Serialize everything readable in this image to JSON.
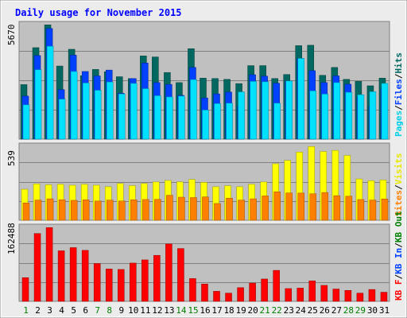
{
  "colors": {
    "frame": "#ececec",
    "panel": "#c0c0c0",
    "grid": "#808080",
    "title": "#0000ff",
    "hits": "#006860",
    "files": "#0040ff",
    "pages": "#00e0ff",
    "visits": "#ffff00",
    "sites": "#ff8000",
    "kbin": "#008000",
    "kbout": "#0000ff",
    "kbf": "#ff0000",
    "day_weekday": "#000000",
    "day_weekend": "#008000"
  },
  "chart_data": [
    {
      "type": "bar",
      "title": "Daily usage for November 2015",
      "panel": "top",
      "scale_label": "5670",
      "ymax": 5670,
      "side_labels": [
        "Pages",
        "/",
        "Files",
        "/",
        "Hits"
      ],
      "categories": [
        "1",
        "2",
        "3",
        "4",
        "5",
        "6",
        "7",
        "8",
        "9",
        "10",
        "11",
        "12",
        "13",
        "14",
        "15",
        "16",
        "17",
        "18",
        "19",
        "20",
        "21",
        "22",
        "23",
        "24",
        "25",
        "26",
        "27",
        "28",
        "29",
        "30",
        "31"
      ],
      "series": [
        {
          "name": "Hits",
          "values": [
            2700,
            4530,
            5660,
            3620,
            4450,
            3140,
            3450,
            3340,
            3090,
            3000,
            4120,
            4070,
            3300,
            2800,
            4480,
            3020,
            3000,
            2960,
            2750,
            3640,
            3640,
            3000,
            3200,
            4630,
            4650,
            3160,
            3550,
            2960,
            2860,
            2640,
            3020
          ]
        },
        {
          "name": "Files",
          "values": [
            2130,
            4140,
            5480,
            2450,
            4160,
            3350,
            3130,
            3420,
            2270,
            3000,
            3770,
            2800,
            2710,
            2170,
            3550,
            2040,
            2240,
            2330,
            1630,
            3190,
            3120,
            2770,
            2880,
            4000,
            3390,
            2800,
            3130,
            2720,
            2100,
            1600,
            2500
          ]
        },
        {
          "name": "Pages",
          "values": [
            1700,
            3440,
            4600,
            1980,
            3350,
            2780,
            2420,
            2830,
            2240,
            2760,
            2500,
            2150,
            2090,
            2130,
            2950,
            1440,
            1760,
            1780,
            2340,
            2860,
            2840,
            1780,
            2880,
            4000,
            2390,
            2230,
            2800,
            2320,
            2200,
            2350,
            2760
          ]
        }
      ]
    },
    {
      "type": "bar",
      "panel": "middle",
      "scale_label": "539",
      "ymax": 539,
      "side_labels": [
        "Visits",
        "/",
        "Sites"
      ],
      "categories": [
        "1",
        "2",
        "3",
        "4",
        "5",
        "6",
        "7",
        "8",
        "9",
        "10",
        "11",
        "12",
        "13",
        "14",
        "15",
        "16",
        "17",
        "18",
        "19",
        "20",
        "21",
        "22",
        "23",
        "24",
        "25",
        "26",
        "27",
        "28",
        "29",
        "30",
        "31"
      ],
      "series": [
        {
          "name": "Visits",
          "values": [
            226,
            265,
            258,
            262,
            255,
            262,
            255,
            244,
            268,
            252,
            268,
            279,
            290,
            279,
            297,
            276,
            244,
            251,
            244,
            262,
            279,
            412,
            436,
            497,
            537,
            501,
            509,
            472,
            301,
            288,
            293
          ]
        },
        {
          "name": "Sites",
          "values": [
            126,
            147,
            156,
            149,
            145,
            149,
            140,
            147,
            140,
            149,
            151,
            152,
            182,
            168,
            165,
            170,
            122,
            161,
            147,
            156,
            177,
            207,
            199,
            198,
            193,
            202,
            179,
            175,
            151,
            147,
            155
          ]
        }
      ]
    },
    {
      "type": "bar",
      "panel": "bottom",
      "scale_label": "162488",
      "ymax": 162488,
      "side_labels": [
        "KB F",
        "/",
        "KB In",
        "/",
        "KB Out"
      ],
      "categories": [
        "1",
        "2",
        "3",
        "4",
        "5",
        "6",
        "7",
        "8",
        "9",
        "10",
        "11",
        "12",
        "13",
        "14",
        "15",
        "16",
        "17",
        "18",
        "19",
        "20",
        "21",
        "22",
        "23",
        "24",
        "25",
        "26",
        "27",
        "28",
        "29",
        "30",
        "31"
      ],
      "series": [
        {
          "name": "KB F",
          "values": [
            52000,
            149000,
            162000,
            111000,
            118000,
            112000,
            83000,
            71000,
            70000,
            84000,
            91000,
            101000,
            126000,
            116000,
            50000,
            38000,
            22000,
            18000,
            30000,
            40000,
            49000,
            68000,
            28000,
            29000,
            45000,
            35000,
            27000,
            24000,
            18000,
            26000,
            20000
          ]
        }
      ]
    }
  ],
  "day_labels": [
    {
      "text": "1",
      "weekend": true
    },
    {
      "text": "2",
      "weekend": false
    },
    {
      "text": "3",
      "weekend": false
    },
    {
      "text": "4",
      "weekend": false
    },
    {
      "text": "5",
      "weekend": false
    },
    {
      "text": "6",
      "weekend": false
    },
    {
      "text": "7",
      "weekend": true
    },
    {
      "text": "8",
      "weekend": true
    },
    {
      "text": "9",
      "weekend": false
    },
    {
      "text": "10",
      "weekend": false
    },
    {
      "text": "11",
      "weekend": false
    },
    {
      "text": "12",
      "weekend": false
    },
    {
      "text": "13",
      "weekend": false
    },
    {
      "text": "14",
      "weekend": true
    },
    {
      "text": "15",
      "weekend": true
    },
    {
      "text": "16",
      "weekend": false
    },
    {
      "text": "17",
      "weekend": false
    },
    {
      "text": "18",
      "weekend": false
    },
    {
      "text": "19",
      "weekend": false
    },
    {
      "text": "20",
      "weekend": false
    },
    {
      "text": "21",
      "weekend": true
    },
    {
      "text": "22",
      "weekend": true
    },
    {
      "text": "23",
      "weekend": false
    },
    {
      "text": "24",
      "weekend": false
    },
    {
      "text": "25",
      "weekend": false
    },
    {
      "text": "26",
      "weekend": false
    },
    {
      "text": "27",
      "weekend": false
    },
    {
      "text": "28",
      "weekend": true
    },
    {
      "text": "29",
      "weekend": true
    },
    {
      "text": "30",
      "weekend": false
    },
    {
      "text": "31",
      "weekend": false
    }
  ]
}
